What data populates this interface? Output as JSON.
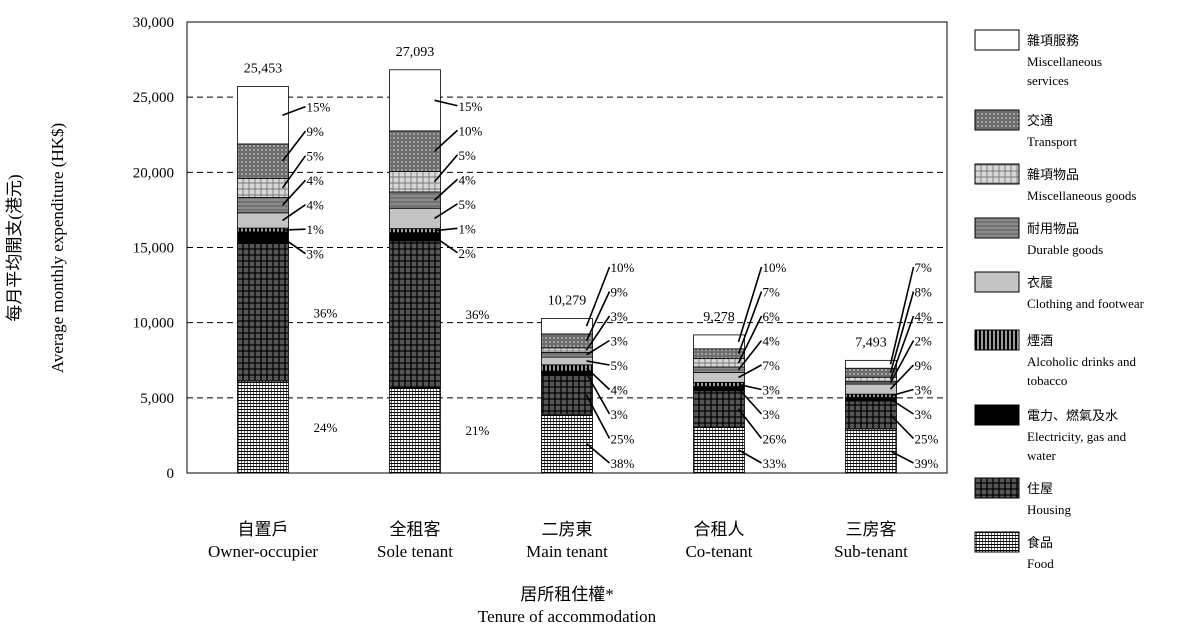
{
  "chart_data": {
    "type": "bar",
    "stacked": true,
    "ylabel_zh": "每月平均開支(港元)",
    "ylabel_en": "Average monthly expenditure (HK$)",
    "xlabel_zh": "居所租住權*",
    "xlabel_en": "Tenure of accommodation",
    "ylim": [
      0,
      30000
    ],
    "yticks": [
      "0",
      "5,000",
      "10,000",
      "15,000",
      "20,000",
      "25,000",
      "30,000"
    ],
    "gridlines": "dashed at 5,000 intervals",
    "legend_position": "right",
    "categories": [
      {
        "zh": "自置戶",
        "en": "Owner-occupier",
        "total": 25453,
        "total_label": "25,453"
      },
      {
        "zh": "全租客",
        "en": "Sole tenant",
        "total": 27093,
        "total_label": "27,093"
      },
      {
        "zh": "二房東",
        "en": "Main tenant",
        "total": 10279,
        "total_label": "10,279"
      },
      {
        "zh": "合租人",
        "en": "Co-tenant",
        "total": 9278,
        "total_label": "9,278"
      },
      {
        "zh": "三房客",
        "en": "Sub-tenant",
        "total": 7493,
        "total_label": "7,493"
      }
    ],
    "series": [
      {
        "name_zh": "食品",
        "name_en": "Food",
        "pattern": "food",
        "percent_labels": [
          "24%",
          "21%",
          "38%",
          "33%",
          "39%"
        ]
      },
      {
        "name_zh": "住屋",
        "name_en": "Housing",
        "pattern": "housing",
        "percent_labels": [
          "36%",
          "36%",
          "25%",
          "26%",
          "25%"
        ]
      },
      {
        "name_zh": "電力、燃氣及水",
        "name_en": "Electricity, gas and water",
        "pattern": "elec",
        "percent_labels": [
          "3%",
          "2%",
          "3%",
          "3%",
          "3%"
        ]
      },
      {
        "name_zh": "煙酒",
        "name_en": "Alcoholic drinks and tobacco",
        "pattern": "alc",
        "percent_labels": [
          "1%",
          "1%",
          "4%",
          "3%",
          "3%"
        ]
      },
      {
        "name_zh": "衣履",
        "name_en": "Clothing and footwear",
        "pattern": "cloth",
        "percent_labels": [
          "4%",
          "5%",
          "5%",
          "7%",
          "9%"
        ]
      },
      {
        "name_zh": "耐用物品",
        "name_en": "Durable goods",
        "pattern": "durable",
        "percent_labels": [
          "4%",
          "4%",
          "3%",
          "4%",
          "2%"
        ]
      },
      {
        "name_zh": "雜項物品",
        "name_en": "Miscellaneous goods",
        "pattern": "miscg",
        "percent_labels": [
          "5%",
          "5%",
          "3%",
          "6%",
          "4%"
        ]
      },
      {
        "name_zh": "交通",
        "name_en": "Transport",
        "pattern": "transport",
        "percent_labels": [
          "9%",
          "10%",
          "9%",
          "7%",
          "8%"
        ]
      },
      {
        "name_zh": "雜項服務",
        "name_en": "Miscellaneous services",
        "pattern": "miscs",
        "percent_labels": [
          "15%",
          "15%",
          "10%",
          "10%",
          "7%"
        ]
      }
    ],
    "legend": [
      {
        "zh": "雜項服務",
        "en_lines": [
          "Miscellaneous",
          "services"
        ],
        "pattern": "miscs"
      },
      {
        "zh": "交通",
        "en_lines": [
          "Transport"
        ],
        "pattern": "transport"
      },
      {
        "zh": "雜項物品",
        "en_lines": [
          "Miscellaneous goods"
        ],
        "pattern": "miscg"
      },
      {
        "zh": "耐用物品",
        "en_lines": [
          "Durable goods"
        ],
        "pattern": "durable"
      },
      {
        "zh": "衣履",
        "en_lines": [
          "Clothing and footwear"
        ],
        "pattern": "cloth"
      },
      {
        "zh": "煙酒",
        "en_lines": [
          "Alcoholic drinks and",
          "tobacco"
        ],
        "pattern": "alc"
      },
      {
        "zh": "電力、燃氣及水",
        "en_lines": [
          "Electricity, gas and",
          "water"
        ],
        "pattern": "elec"
      },
      {
        "zh": "住屋",
        "en_lines": [
          "Housing"
        ],
        "pattern": "housing"
      },
      {
        "zh": "食品",
        "en_lines": [
          "Food"
        ],
        "pattern": "food"
      }
    ]
  }
}
